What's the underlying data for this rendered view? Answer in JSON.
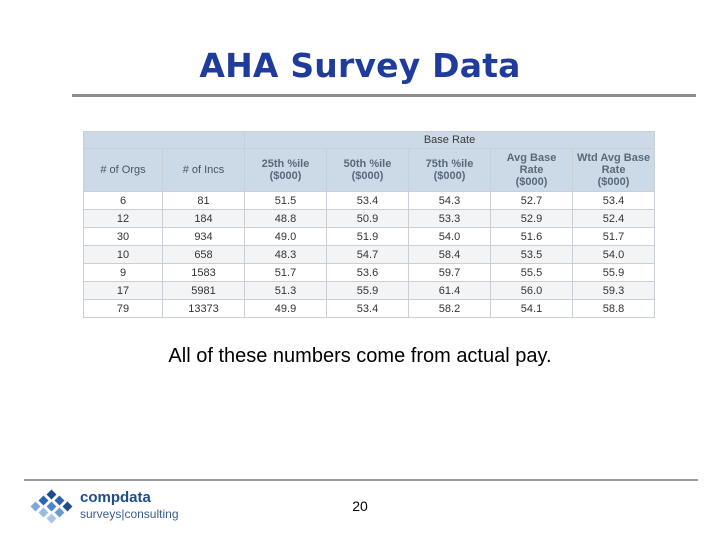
{
  "title": "AHA Survey Data",
  "table": {
    "group_header": "Base Rate",
    "columns": [
      {
        "line1": "# of Orgs",
        "line2": "",
        "line3": ""
      },
      {
        "line1": "# of Incs",
        "line2": "",
        "line3": ""
      },
      {
        "line1": "25th %ile",
        "line2": "($000)",
        "line3": ""
      },
      {
        "line1": "50th %ile",
        "line2": "($000)",
        "line3": ""
      },
      {
        "line1": "75th %ile",
        "line2": "($000)",
        "line3": ""
      },
      {
        "line1": "Avg Base",
        "line2": "Rate",
        "line3": "($000)"
      },
      {
        "line1": "Wtd Avg Base",
        "line2": "Rate",
        "line3": "($000)"
      }
    ],
    "rows": [
      [
        "6",
        "81",
        "51.5",
        "53.4",
        "54.3",
        "52.7",
        "53.4"
      ],
      [
        "12",
        "184",
        "48.8",
        "50.9",
        "53.3",
        "52.9",
        "52.4"
      ],
      [
        "30",
        "934",
        "49.0",
        "51.9",
        "54.0",
        "51.6",
        "51.7"
      ],
      [
        "10",
        "658",
        "48.3",
        "54.7",
        "58.4",
        "53.5",
        "54.0"
      ],
      [
        "9",
        "1583",
        "51.7",
        "53.6",
        "59.7",
        "55.5",
        "55.9"
      ],
      [
        "17",
        "5981",
        "51.3",
        "55.9",
        "61.4",
        "56.0",
        "59.3"
      ],
      [
        "79",
        "13373",
        "49.9",
        "53.4",
        "58.2",
        "54.1",
        "58.8"
      ]
    ]
  },
  "caption": "All of these numbers come from actual pay.",
  "footer": {
    "logo_line1": "compdata",
    "logo_line2": "surveys|consulting",
    "page_number": "20"
  },
  "colors": {
    "title": "#1f3b9b",
    "header_fill": "#ccd9e6"
  }
}
